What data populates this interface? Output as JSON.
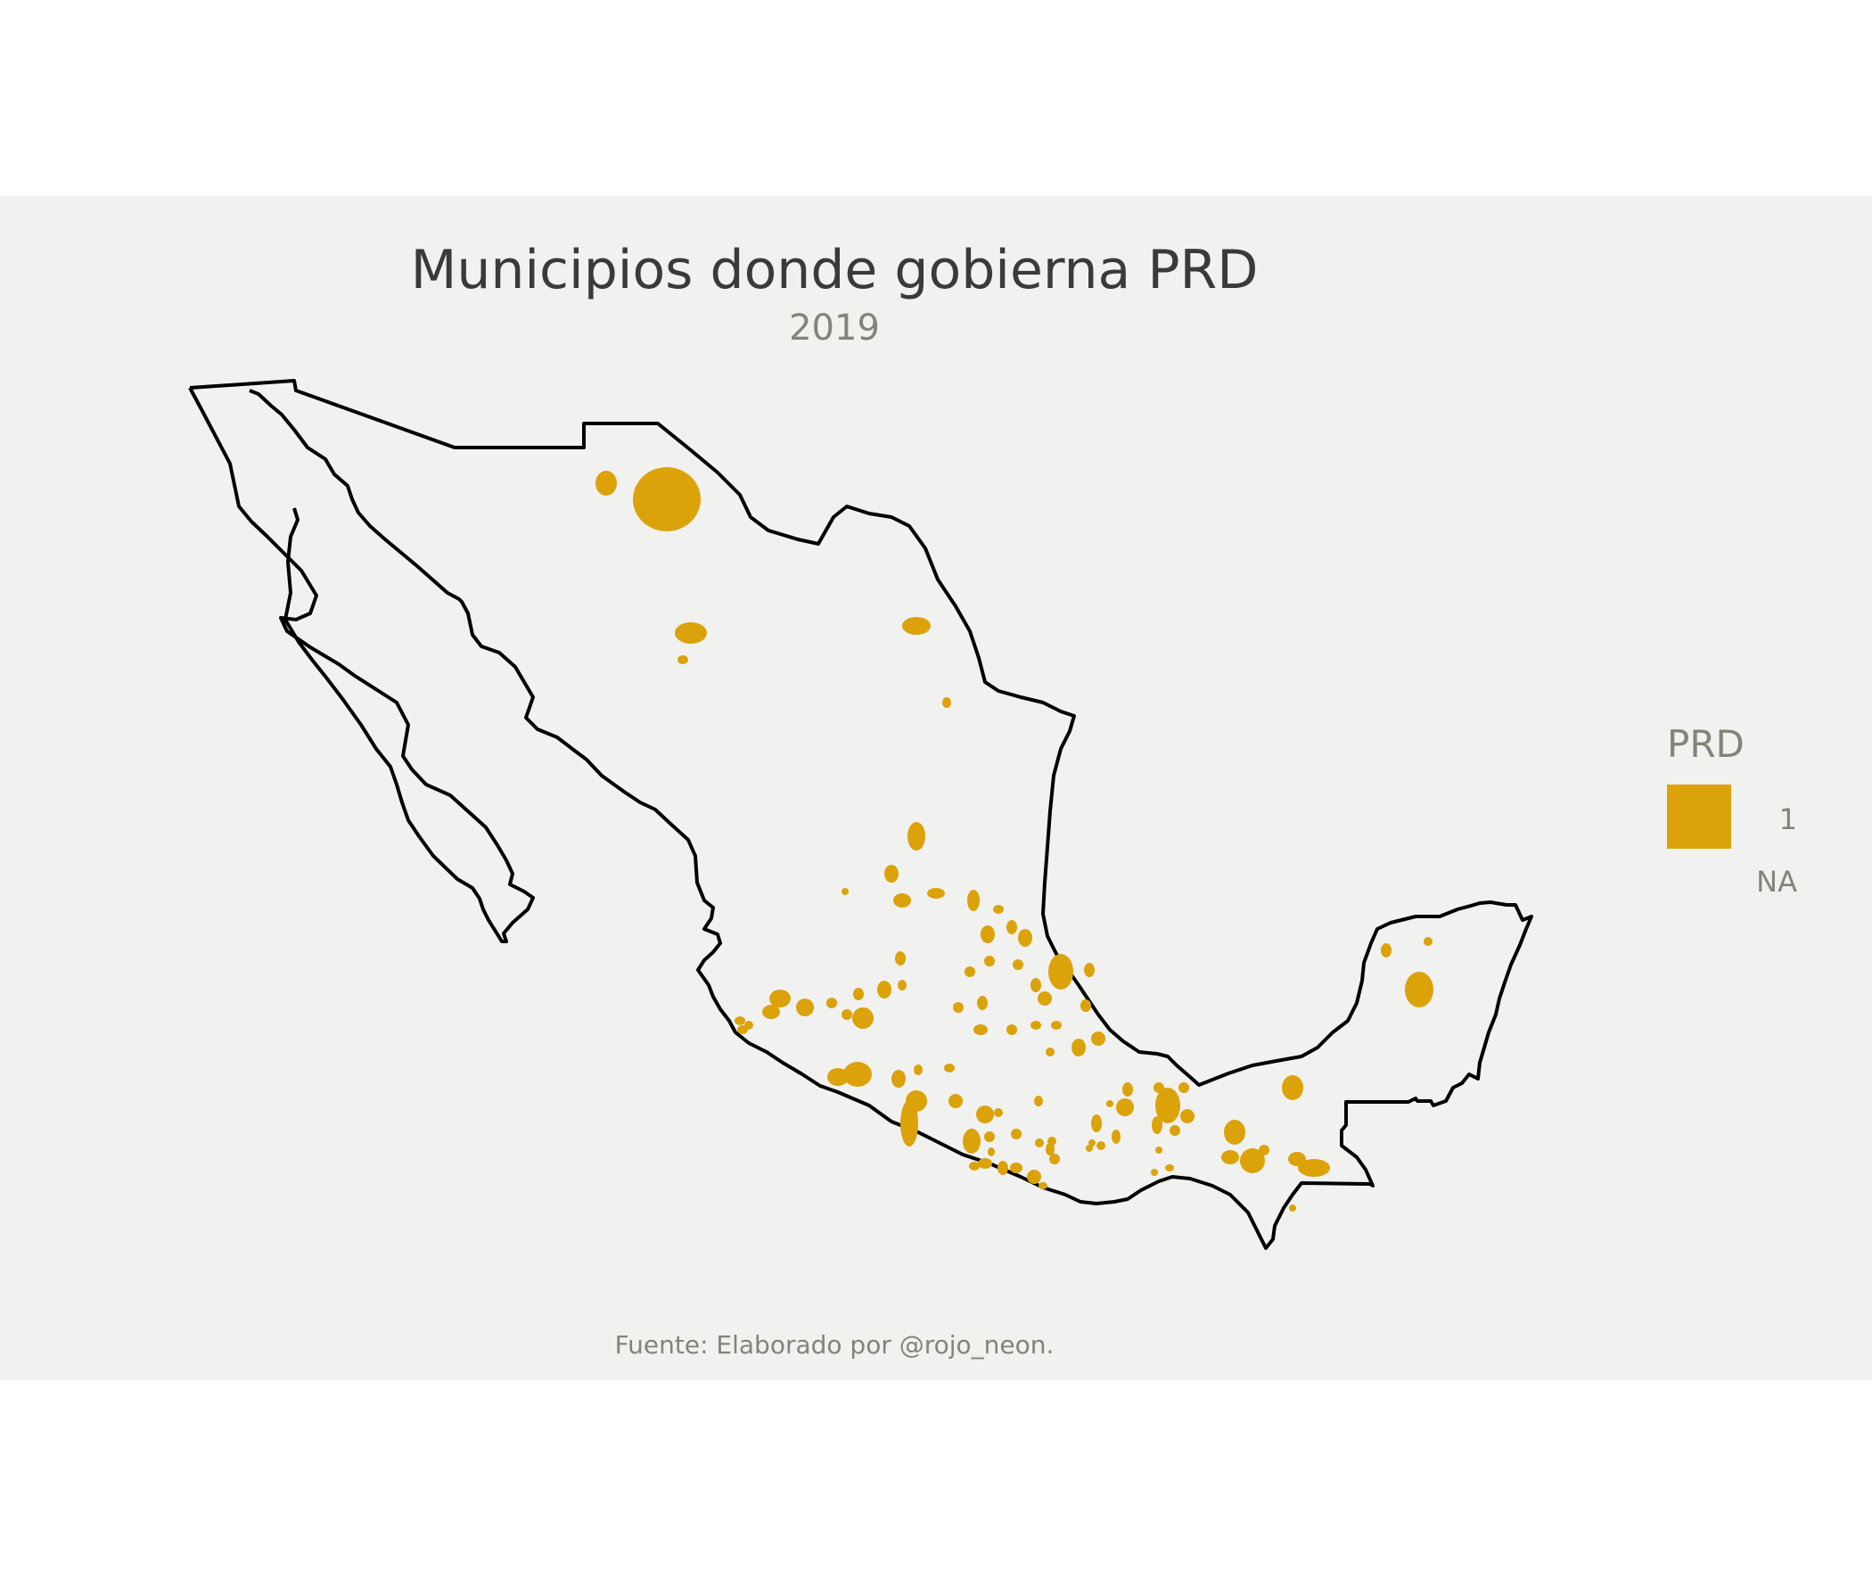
{
  "map": {
    "title": "Municipios donde gobierna PRD",
    "subtitle": "2019",
    "caption": "Fuente: Elaborado por @rojo_neon.",
    "region": "Mexico",
    "fill_variable": "PRD",
    "colors": {
      "prd": "#dba20a",
      "background": "#f1f1ef",
      "outline": "#000000"
    }
  },
  "legend": {
    "title": "PRD",
    "entries": [
      {
        "label": "1",
        "color": "#dba20a"
      },
      {
        "label": "NA",
        "color": "#f1f1ef"
      }
    ]
  }
}
